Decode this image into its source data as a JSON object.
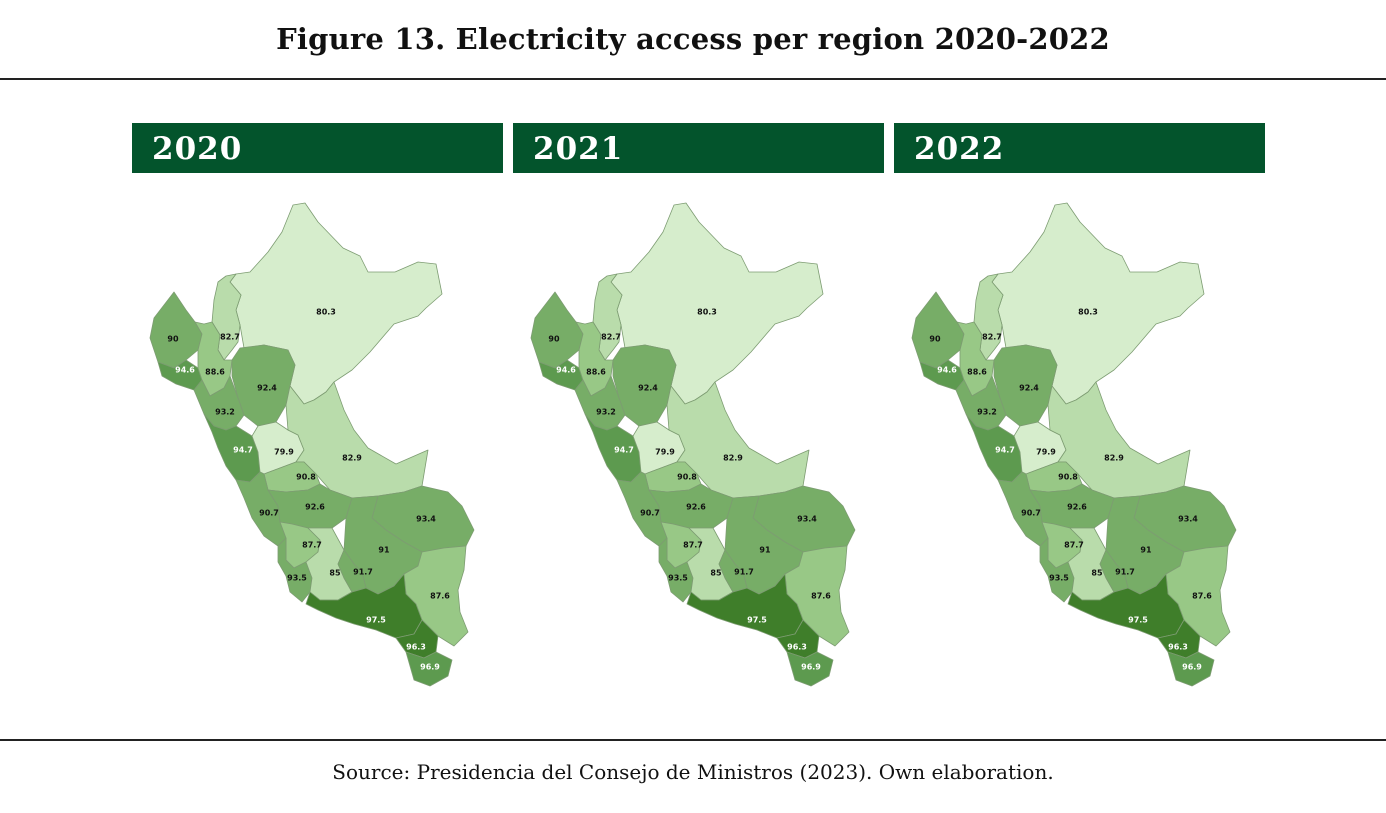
{
  "title": "Figure 13. Electricity access per region 2020-2022",
  "source": "Source: Presidencia del Consejo de Ministros (2023). Own elaboration.",
  "colors": {
    "header_bg": "#03542c",
    "header_text": "#ffffff",
    "scale": [
      "#d6edcc",
      "#b9dcab",
      "#98c886",
      "#77ad67",
      "#5d9a4f",
      "#3f7e2a"
    ],
    "label_dark": "#111111",
    "label_light": "#ffffff"
  },
  "panels": [
    {
      "year": "2020",
      "regions": [
        {
          "id": "loreto",
          "value": "80.3"
        },
        {
          "id": "amazonas",
          "value": "82.7"
        },
        {
          "id": "piura",
          "value": "90"
        },
        {
          "id": "lambayeque",
          "value": "94.6"
        },
        {
          "id": "cajamarca",
          "value": "88.6"
        },
        {
          "id": "san_martin",
          "value": "92.4"
        },
        {
          "id": "la_libertad",
          "value": "93.2"
        },
        {
          "id": "ancash",
          "value": "94.7"
        },
        {
          "id": "huanuco",
          "value": "79.9"
        },
        {
          "id": "ucayali",
          "value": "82.9"
        },
        {
          "id": "pasco",
          "value": "90.8"
        },
        {
          "id": "lima",
          "value": "90.7"
        },
        {
          "id": "junin",
          "value": "92.6"
        },
        {
          "id": "madre_de_dios",
          "value": "93.4"
        },
        {
          "id": "huancavelica",
          "value": "87.7"
        },
        {
          "id": "cusco",
          "value": "91"
        },
        {
          "id": "ica",
          "value": "93.5"
        },
        {
          "id": "ayacucho",
          "value": "85"
        },
        {
          "id": "apurimac",
          "value": "91.7"
        },
        {
          "id": "puno",
          "value": "87.6"
        },
        {
          "id": "arequipa",
          "value": "97.5"
        },
        {
          "id": "moquegua",
          "value": "96.3"
        },
        {
          "id": "tacna",
          "value": "96.9"
        }
      ]
    },
    {
      "year": "2021",
      "regions": [
        {
          "id": "loreto",
          "value": "80.3"
        },
        {
          "id": "amazonas",
          "value": "82.7"
        },
        {
          "id": "piura",
          "value": "90"
        },
        {
          "id": "lambayeque",
          "value": "94.6"
        },
        {
          "id": "cajamarca",
          "value": "88.6"
        },
        {
          "id": "san_martin",
          "value": "92.4"
        },
        {
          "id": "la_libertad",
          "value": "93.2"
        },
        {
          "id": "ancash",
          "value": "94.7"
        },
        {
          "id": "huanuco",
          "value": "79.9"
        },
        {
          "id": "ucayali",
          "value": "82.9"
        },
        {
          "id": "pasco",
          "value": "90.8"
        },
        {
          "id": "lima",
          "value": "90.7"
        },
        {
          "id": "junin",
          "value": "92.6"
        },
        {
          "id": "madre_de_dios",
          "value": "93.4"
        },
        {
          "id": "huancavelica",
          "value": "87.7"
        },
        {
          "id": "cusco",
          "value": "91"
        },
        {
          "id": "ica",
          "value": "93.5"
        },
        {
          "id": "ayacucho",
          "value": "85"
        },
        {
          "id": "apurimac",
          "value": "91.7"
        },
        {
          "id": "puno",
          "value": "87.6"
        },
        {
          "id": "arequipa",
          "value": "97.5"
        },
        {
          "id": "moquegua",
          "value": "96.3"
        },
        {
          "id": "tacna",
          "value": "96.9"
        }
      ]
    },
    {
      "year": "2022",
      "regions": [
        {
          "id": "loreto",
          "value": "80.3"
        },
        {
          "id": "amazonas",
          "value": "82.7"
        },
        {
          "id": "piura",
          "value": "90"
        },
        {
          "id": "lambayeque",
          "value": "94.6"
        },
        {
          "id": "cajamarca",
          "value": "88.6"
        },
        {
          "id": "san_martin",
          "value": "92.4"
        },
        {
          "id": "la_libertad",
          "value": "93.2"
        },
        {
          "id": "ancash",
          "value": "94.7"
        },
        {
          "id": "huanuco",
          "value": "79.9"
        },
        {
          "id": "ucayali",
          "value": "82.9"
        },
        {
          "id": "pasco",
          "value": "90.8"
        },
        {
          "id": "lima",
          "value": "90.7"
        },
        {
          "id": "junin",
          "value": "92.6"
        },
        {
          "id": "madre_de_dios",
          "value": "93.4"
        },
        {
          "id": "huancavelica",
          "value": "87.7"
        },
        {
          "id": "cusco",
          "value": "91"
        },
        {
          "id": "ica",
          "value": "93.5"
        },
        {
          "id": "ayacucho",
          "value": "85"
        },
        {
          "id": "apurimac",
          "value": "91.7"
        },
        {
          "id": "puno",
          "value": "87.6"
        },
        {
          "id": "arequipa",
          "value": "97.5"
        },
        {
          "id": "moquegua",
          "value": "96.3"
        },
        {
          "id": "tacna",
          "value": "96.9"
        }
      ]
    }
  ]
}
